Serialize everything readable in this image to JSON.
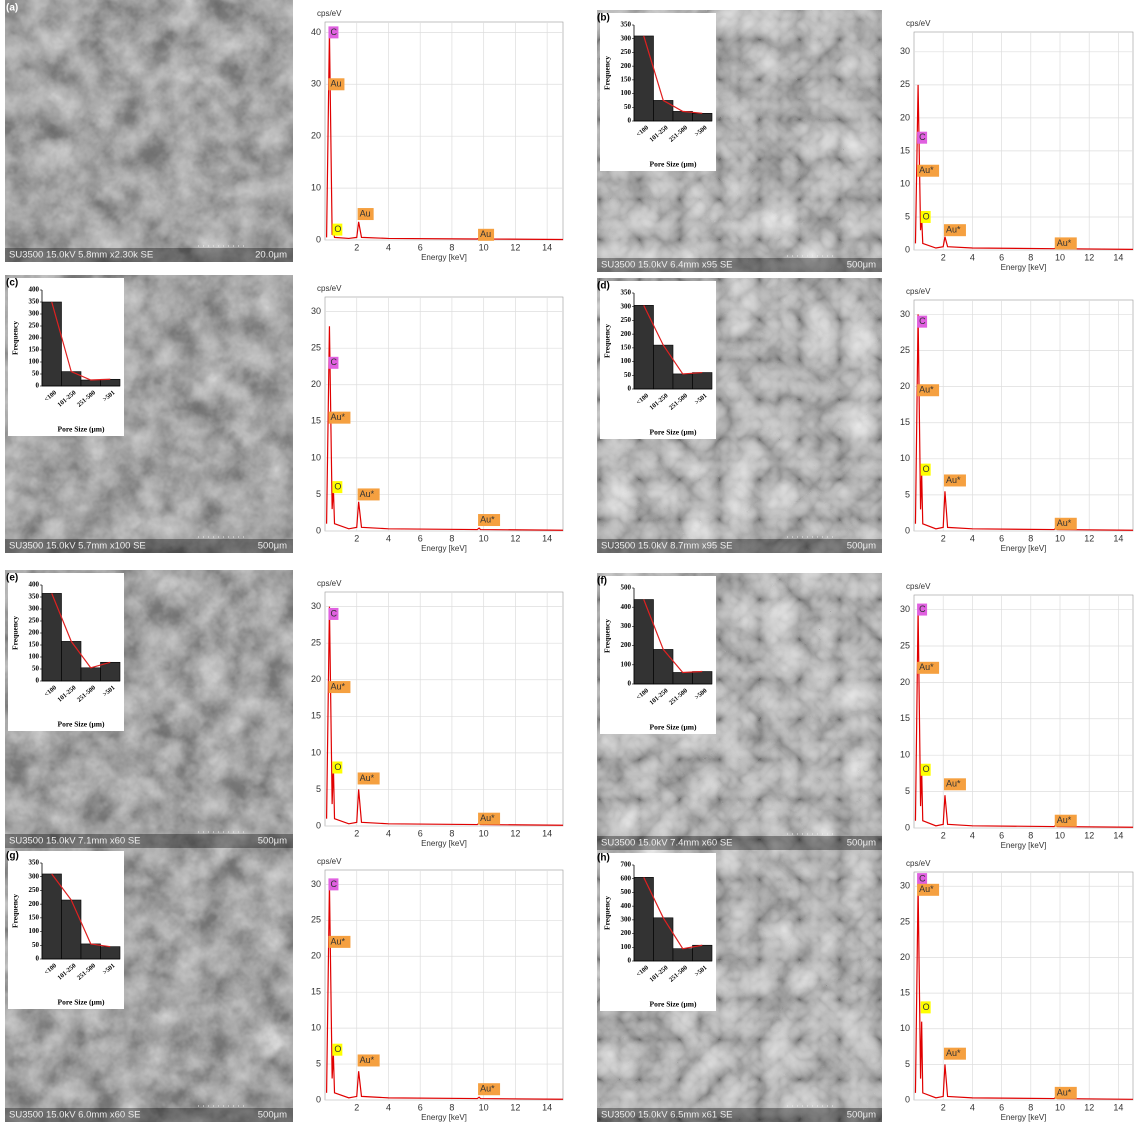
{
  "panels": [
    {
      "label": "(a)",
      "sem_caption": "SU3500 15.0kV 5.8mm x2.30k SE",
      "scale_bar": "20.0μm"
    },
    {
      "label": "(b)",
      "sem_caption": "SU3500 15.0kV 6.4mm x95 SE",
      "scale_bar": "500μm"
    },
    {
      "label": "(c)",
      "sem_caption": "SU3500 15.0kV 5.7mm x100 SE",
      "scale_bar": "500μm"
    },
    {
      "label": "(d)",
      "sem_caption": "SU3500 15.0kV 8.7mm x95 SE",
      "scale_bar": "500μm"
    },
    {
      "label": "(e)",
      "sem_caption": "SU3500 15.0kV 7.1mm x60 SE",
      "scale_bar": "500μm"
    },
    {
      "label": "(f)",
      "sem_caption": "SU3500 15.0kV 7.4mm x60 SE",
      "scale_bar": "500μm"
    },
    {
      "label": "(g)",
      "sem_caption": "SU3500 15.0kV 6.0mm x60 SE",
      "scale_bar": "500μm"
    },
    {
      "label": "(h)",
      "sem_caption": "SU3500 15.0kV 6.5mm x61 SE",
      "scale_bar": "500μm"
    }
  ],
  "chart_data": [
    {
      "type": "line",
      "y_label": "cps/eV",
      "x_label": "Energy [keV]",
      "color": "#e00000",
      "grid": true,
      "x": [
        0.1,
        0.28,
        0.45,
        0.525,
        0.6,
        1.5,
        2.0,
        2.12,
        2.3,
        4,
        9.6,
        9.71,
        9.8,
        15
      ],
      "values": [
        0.5,
        40,
        1,
        2,
        0.5,
        0.3,
        0.5,
        3.5,
        0.5,
        0.3,
        0.2,
        0.4,
        0.2,
        0.1
      ],
      "xlim": [
        0,
        15
      ],
      "xticks": [
        2,
        4,
        6,
        8,
        10,
        12,
        14
      ],
      "ylim": [
        0,
        42
      ],
      "yticks": [
        0,
        10,
        20,
        30,
        40
      ],
      "peak_labels": [
        {
          "label": "C",
          "x": 0.28,
          "y": 40,
          "color": "#e060e0"
        },
        {
          "label": "Au",
          "x": 0.28,
          "y": 30,
          "color": "#f5a040"
        },
        {
          "label": "O",
          "x": 0.525,
          "y": 2,
          "color": "#ffff00"
        },
        {
          "label": "Au",
          "x": 2.12,
          "y": 5,
          "color": "#f5a040"
        },
        {
          "label": "Au",
          "x": 9.71,
          "y": 1,
          "color": "#f5a040"
        }
      ]
    },
    {
      "type": "line",
      "y_label": "cps/eV",
      "x_label": "Energy [keV]",
      "color": "#e00000",
      "grid": true,
      "x": [
        0.1,
        0.28,
        0.45,
        0.525,
        0.6,
        1.5,
        2.0,
        2.12,
        2.3,
        4,
        9.6,
        9.71,
        9.8,
        15
      ],
      "values": [
        1,
        25,
        3,
        5,
        1,
        0.3,
        0.5,
        2,
        0.5,
        0.3,
        0.2,
        0.3,
        0.2,
        0.1
      ],
      "xlim": [
        0,
        15
      ],
      "xticks": [
        2,
        4,
        6,
        8,
        10,
        12,
        14
      ],
      "ylim": [
        0,
        33
      ],
      "yticks": [
        0,
        5,
        10,
        15,
        20,
        25,
        30
      ],
      "peak_labels": [
        {
          "label": "C",
          "x": 0.28,
          "y": 17,
          "color": "#e060e0"
        },
        {
          "label": "Au*",
          "x": 0.28,
          "y": 12,
          "color": "#f5a040"
        },
        {
          "label": "O",
          "x": 0.525,
          "y": 5,
          "color": "#ffff00"
        },
        {
          "label": "Au*",
          "x": 2.12,
          "y": 3,
          "color": "#f5a040"
        },
        {
          "label": "Au*",
          "x": 9.71,
          "y": 1,
          "color": "#f5a040"
        }
      ]
    },
    {
      "type": "line",
      "y_label": "cps/eV",
      "x_label": "Energy [keV]",
      "color": "#e00000",
      "grid": true,
      "x": [
        0.1,
        0.28,
        0.45,
        0.525,
        0.6,
        1.5,
        2.0,
        2.12,
        2.3,
        4,
        9.6,
        9.71,
        9.8,
        15
      ],
      "values": [
        1,
        28,
        3,
        6,
        1,
        0.3,
        0.5,
        4,
        0.5,
        0.3,
        0.2,
        0.4,
        0.2,
        0.1
      ],
      "xlim": [
        0,
        15
      ],
      "xticks": [
        2,
        4,
        6,
        8,
        10,
        12,
        14
      ],
      "ylim": [
        0,
        32
      ],
      "yticks": [
        0,
        5,
        10,
        15,
        20,
        25,
        30
      ],
      "peak_labels": [
        {
          "label": "C",
          "x": 0.28,
          "y": 23,
          "color": "#e060e0"
        },
        {
          "label": "Au*",
          "x": 0.28,
          "y": 15.5,
          "color": "#f5a040"
        },
        {
          "label": "O",
          "x": 0.525,
          "y": 6,
          "color": "#ffff00"
        },
        {
          "label": "Au*",
          "x": 2.12,
          "y": 5,
          "color": "#f5a040"
        },
        {
          "label": "Au*",
          "x": 9.71,
          "y": 1.5,
          "color": "#f5a040"
        }
      ]
    },
    {
      "type": "line",
      "y_label": "cps/eV",
      "x_label": "Energy [keV]",
      "color": "#e00000",
      "grid": true,
      "x": [
        0.1,
        0.28,
        0.45,
        0.525,
        0.6,
        1.5,
        2.0,
        2.12,
        2.3,
        4,
        9.6,
        9.71,
        9.8,
        15
      ],
      "values": [
        1,
        30,
        3,
        8,
        1,
        0.3,
        0.5,
        5.5,
        0.5,
        0.3,
        0.2,
        0.4,
        0.2,
        0.1
      ],
      "xlim": [
        0,
        15
      ],
      "xticks": [
        2,
        4,
        6,
        8,
        10,
        12,
        14
      ],
      "ylim": [
        0,
        32
      ],
      "yticks": [
        0,
        5,
        10,
        15,
        20,
        25,
        30
      ],
      "peak_labels": [
        {
          "label": "C",
          "x": 0.28,
          "y": 29,
          "color": "#e060e0"
        },
        {
          "label": "Au*",
          "x": 0.28,
          "y": 19.5,
          "color": "#f5a040"
        },
        {
          "label": "O",
          "x": 0.525,
          "y": 8.5,
          "color": "#ffff00"
        },
        {
          "label": "Au*",
          "x": 2.12,
          "y": 7,
          "color": "#f5a040"
        },
        {
          "label": "Au*",
          "x": 9.71,
          "y": 1,
          "color": "#f5a040"
        }
      ]
    },
    {
      "type": "line",
      "y_label": "cps/eV",
      "x_label": "Energy [keV]",
      "color": "#e00000",
      "grid": true,
      "x": [
        0.1,
        0.28,
        0.45,
        0.525,
        0.6,
        1.5,
        2.0,
        2.12,
        2.3,
        4,
        9.6,
        9.71,
        9.8,
        15
      ],
      "values": [
        1,
        30,
        3,
        8.5,
        1,
        0.3,
        0.5,
        5,
        0.5,
        0.3,
        0.2,
        0.4,
        0.2,
        0.1
      ],
      "xlim": [
        0,
        15
      ],
      "xticks": [
        2,
        4,
        6,
        8,
        10,
        12,
        14
      ],
      "ylim": [
        0,
        32
      ],
      "yticks": [
        0,
        5,
        10,
        15,
        20,
        25,
        30
      ],
      "peak_labels": [
        {
          "label": "C",
          "x": 0.28,
          "y": 29,
          "color": "#e060e0"
        },
        {
          "label": "Au*",
          "x": 0.28,
          "y": 19,
          "color": "#f5a040"
        },
        {
          "label": "O",
          "x": 0.525,
          "y": 8,
          "color": "#ffff00"
        },
        {
          "label": "Au*",
          "x": 2.12,
          "y": 6.5,
          "color": "#f5a040"
        },
        {
          "label": "Au*",
          "x": 9.71,
          "y": 1,
          "color": "#f5a040"
        }
      ]
    },
    {
      "type": "line",
      "y_label": "cps/eV",
      "x_label": "Energy [keV]",
      "color": "#e00000",
      "grid": true,
      "x": [
        0.1,
        0.28,
        0.45,
        0.525,
        0.6,
        1.5,
        2.0,
        2.12,
        2.3,
        4,
        9.6,
        9.71,
        9.8,
        15
      ],
      "values": [
        1,
        30,
        3,
        8,
        1,
        0.3,
        0.5,
        4.5,
        0.5,
        0.3,
        0.2,
        0.4,
        0.2,
        0.1
      ],
      "xlim": [
        0,
        15
      ],
      "xticks": [
        2,
        4,
        6,
        8,
        10,
        12,
        14
      ],
      "ylim": [
        0,
        32
      ],
      "yticks": [
        0,
        5,
        10,
        15,
        20,
        25,
        30
      ],
      "peak_labels": [
        {
          "label": "C",
          "x": 0.28,
          "y": 30,
          "color": "#e060e0"
        },
        {
          "label": "Au*",
          "x": 0.28,
          "y": 22,
          "color": "#f5a040"
        },
        {
          "label": "O",
          "x": 0.525,
          "y": 8,
          "color": "#ffff00"
        },
        {
          "label": "Au*",
          "x": 2.12,
          "y": 6,
          "color": "#f5a040"
        },
        {
          "label": "Au*",
          "x": 9.71,
          "y": 1,
          "color": "#f5a040"
        }
      ]
    },
    {
      "type": "line",
      "y_label": "cps/eV",
      "x_label": "Energy [keV]",
      "color": "#e00000",
      "grid": true,
      "x": [
        0.1,
        0.28,
        0.45,
        0.525,
        0.6,
        1.5,
        2.0,
        2.12,
        2.3,
        4,
        9.6,
        9.71,
        9.8,
        15
      ],
      "values": [
        1,
        30,
        3,
        6.5,
        1,
        0.3,
        0.5,
        4,
        0.5,
        0.3,
        0.2,
        0.4,
        0.2,
        0.1
      ],
      "xlim": [
        0,
        15
      ],
      "xticks": [
        2,
        4,
        6,
        8,
        10,
        12,
        14
      ],
      "ylim": [
        0,
        32
      ],
      "yticks": [
        0,
        5,
        10,
        15,
        20,
        25,
        30
      ],
      "peak_labels": [
        {
          "label": "C",
          "x": 0.28,
          "y": 30,
          "color": "#e060e0"
        },
        {
          "label": "Au*",
          "x": 0.28,
          "y": 22,
          "color": "#f5a040"
        },
        {
          "label": "O",
          "x": 0.525,
          "y": 7,
          "color": "#ffff00"
        },
        {
          "label": "Au*",
          "x": 2.12,
          "y": 5.5,
          "color": "#f5a040"
        },
        {
          "label": "Au*",
          "x": 9.71,
          "y": 1.5,
          "color": "#f5a040"
        }
      ]
    },
    {
      "type": "line",
      "y_label": "cps/eV",
      "x_label": "Energy [keV]",
      "color": "#e00000",
      "grid": true,
      "x": [
        0.1,
        0.28,
        0.45,
        0.525,
        0.6,
        1.5,
        2.0,
        2.12,
        2.3,
        4,
        9.6,
        9.71,
        9.8,
        15
      ],
      "values": [
        1,
        30,
        3,
        11,
        1,
        0.3,
        0.5,
        5,
        0.5,
        0.3,
        0.2,
        0.4,
        0.2,
        0.1
      ],
      "xlim": [
        0,
        15
      ],
      "xticks": [
        2,
        4,
        6,
        8,
        10,
        12,
        14
      ],
      "ylim": [
        0,
        32
      ],
      "yticks": [
        0,
        5,
        10,
        15,
        20,
        25,
        30
      ],
      "peak_labels": [
        {
          "label": "C",
          "x": 0.28,
          "y": 31,
          "color": "#e060e0"
        },
        {
          "label": "Au*",
          "x": 0.28,
          "y": 29.5,
          "color": "#f5a040"
        },
        {
          "label": "O",
          "x": 0.525,
          "y": 13,
          "color": "#ffff00"
        },
        {
          "label": "Au*",
          "x": 2.12,
          "y": 6.5,
          "color": "#f5a040"
        },
        {
          "label": "Au*",
          "x": 9.71,
          "y": 1,
          "color": "#f5a040"
        }
      ]
    },
    {
      "type": "bar",
      "x_label": "Pore Size (μm)",
      "y_label": "Frequency",
      "color": "#333333",
      "line_color": "#e02020",
      "categories": [
        "<100",
        "101-250",
        "251-500",
        ">500"
      ],
      "values": [
        310,
        75,
        35,
        28
      ],
      "ylim": [
        0,
        350
      ],
      "yticks": [
        0,
        50,
        100,
        150,
        200,
        250,
        300,
        350
      ]
    },
    {
      "type": "bar",
      "x_label": "Pore Size (μm)",
      "y_label": "Frequency",
      "color": "#333333",
      "line_color": "#e02020",
      "categories": [
        "<100",
        "101-250",
        "251-500",
        ">501"
      ],
      "values": [
        350,
        60,
        25,
        28
      ],
      "ylim": [
        0,
        400
      ],
      "yticks": [
        0,
        50,
        100,
        150,
        200,
        250,
        300,
        350,
        400
      ]
    },
    {
      "type": "bar",
      "x_label": "Pore Size (μm)",
      "y_label": "Frequency",
      "color": "#333333",
      "line_color": "#e02020",
      "categories": [
        "<100",
        "101-250",
        "251-500",
        ">501"
      ],
      "values": [
        305,
        160,
        55,
        60
      ],
      "ylim": [
        0,
        350
      ],
      "yticks": [
        0,
        50,
        100,
        150,
        200,
        250,
        300,
        350
      ]
    },
    {
      "type": "bar",
      "x_label": "Pore Size (μm)",
      "y_label": "Frequency",
      "color": "#333333",
      "line_color": "#e02020",
      "categories": [
        "<100",
        "101-250",
        "251-500",
        ">501"
      ],
      "values": [
        365,
        165,
        55,
        78
      ],
      "ylim": [
        0,
        400
      ],
      "yticks": [
        0,
        50,
        100,
        150,
        200,
        250,
        300,
        350,
        400
      ]
    },
    {
      "type": "bar",
      "x_label": "Pore Size (μm)",
      "y_label": "Frequency",
      "color": "#333333",
      "line_color": "#e02020",
      "categories": [
        "<100",
        "101-250",
        "251-500",
        ">500"
      ],
      "values": [
        440,
        180,
        60,
        65
      ],
      "ylim": [
        0,
        500
      ],
      "yticks": [
        0,
        100,
        200,
        300,
        400,
        500
      ]
    },
    {
      "type": "bar",
      "x_label": "Pore Size (μm)",
      "y_label": "Frequency",
      "color": "#333333",
      "line_color": "#e02020",
      "categories": [
        "<100",
        "101-250",
        "251-500",
        ">501"
      ],
      "values": [
        310,
        215,
        55,
        45
      ],
      "ylim": [
        0,
        350
      ],
      "yticks": [
        0,
        50,
        100,
        150,
        200,
        250,
        300,
        350
      ]
    },
    {
      "type": "bar",
      "x_label": "Pore Size (μm)",
      "y_label": "Frequency",
      "color": "#333333",
      "line_color": "#e02020",
      "categories": [
        "<100",
        "101-250",
        "251-500",
        ">501"
      ],
      "values": [
        610,
        315,
        90,
        115
      ],
      "ylim": [
        0,
        700
      ],
      "yticks": [
        0,
        100,
        200,
        300,
        400,
        500,
        600,
        700
      ]
    }
  ]
}
